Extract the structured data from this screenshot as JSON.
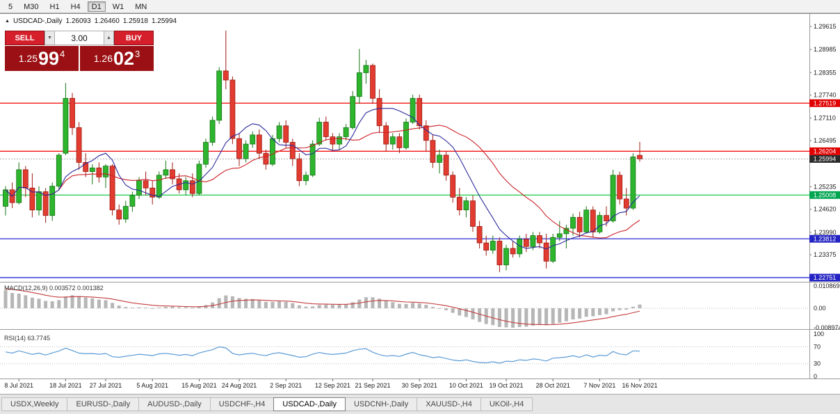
{
  "icons": {
    "collapse_triangle": "▲",
    "spin_up": "▲",
    "spin_down": "▼"
  },
  "toolbar": {
    "timeframes": [
      "5",
      "M30",
      "H1",
      "H4",
      "D1",
      "W1",
      "MN"
    ],
    "active": "D1"
  },
  "chart_header": {
    "symbol": "USDCAD-,Daily",
    "open": "1.26093",
    "high": "1.26460",
    "low": "1.25918",
    "close": "1.25994"
  },
  "trade_panel": {
    "sell_label": "SELL",
    "buy_label": "BUY",
    "volume": "3.00",
    "sell_price": {
      "prefix": "1.25",
      "big": "99",
      "sup": "4"
    },
    "buy_price": {
      "prefix": "1.26",
      "big": "02",
      "sup": "3"
    }
  },
  "tabs": {
    "items": [
      "USDX,Weekly",
      "EURUSD-,Daily",
      "AUDUSD-,Daily",
      "USDCHF-,H4",
      "USDCAD-,Daily",
      "USDCNH-,Daily",
      "XAUUSD-,H4",
      "UKOil-,H4"
    ],
    "active": "USDCAD-,Daily"
  },
  "chart_data": {
    "type": "candlestick",
    "symbol": "USDCAD",
    "timeframe": "Daily",
    "price_axis_labels": [
      "1.29615",
      "1.28985",
      "1.28355",
      "1.27740",
      "1.27110",
      "1.26495",
      "1.25235",
      "1.24620",
      "1.23990",
      "1.23375"
    ],
    "x_axis": {
      "labels": [
        "8 Jul 2021",
        "18 Jul 2021",
        "27 Jul 2021",
        "5 Aug 2021",
        "15 Aug 2021",
        "24 Aug 2021",
        "2 Sep 2021",
        "12 Sep 2021",
        "21 Sep 2021",
        "30 Sep 2021",
        "10 Oct 2021",
        "19 Oct 2021",
        "28 Oct 2021",
        "7 Nov 2021",
        "16 Nov 2021"
      ],
      "tick_indices": [
        2,
        9,
        15,
        22,
        29,
        35,
        42,
        49,
        55,
        62,
        69,
        75,
        82,
        89,
        95
      ]
    },
    "hlines": [
      {
        "price": 1.27519,
        "label": "1.27519",
        "line_color": "#f50000",
        "tag_color": "#e00000"
      },
      {
        "price": 1.26204,
        "label": "1.26204",
        "line_color": "#f50000",
        "tag_color": "#e00000"
      },
      {
        "price": 1.25008,
        "label": "1.25008",
        "line_color": "#00c432",
        "tag_color": "#00a550"
      },
      {
        "price": 1.23812,
        "label": "1.23812",
        "line_color": "#1414cd",
        "tag_color": "#2424c4"
      },
      {
        "price": 1.22751,
        "label": "1.22751",
        "line_color": "#1414cd",
        "tag_color": "#2424c4"
      }
    ],
    "current_price": {
      "value": 1.25994,
      "label": "1.25994",
      "tag_color": "#2b2b2b"
    },
    "overlays": [
      {
        "name": "ma-fast",
        "type": "sma",
        "period": 8
      },
      {
        "name": "ma-slow",
        "type": "sma",
        "period": 20
      }
    ],
    "indicators": {
      "macd": {
        "label": "MACD(12,26,9) 0.003572 0.001382",
        "values": [
          "0.003572",
          "0.001382"
        ],
        "axis_labels": [
          "0.010869",
          "0.00",
          "-0.008974"
        ],
        "max": 0.010869,
        "min": -0.008974
      },
      "rsi": {
        "label": "RSI(14) 63.7745",
        "value": "63.7745",
        "axis_labels": [
          "100",
          "70",
          "30",
          "0"
        ],
        "levels": [
          70,
          30
        ]
      }
    },
    "colors": {
      "bull": "#2db52d",
      "bull_border": "#157515",
      "bear": "#e23b30",
      "bear_border": "#9c1b12",
      "ma_fast": "#2b2b9c",
      "ma_slow": "#cc2026",
      "macd_histogram": "#b6b6b6",
      "macd_signal": "#c43b3b",
      "rsi_line": "#5b9bd5",
      "level_dotted": "#bdbdbd",
      "axis_text": "#1a1a1a"
    },
    "candles": [
      [
        1.247,
        1.2525,
        1.2445,
        1.2515
      ],
      [
        1.2515,
        1.2535,
        1.2465,
        1.248
      ],
      [
        1.248,
        1.259,
        1.2475,
        1.257
      ],
      [
        1.257,
        1.258,
        1.2495,
        1.252
      ],
      [
        1.252,
        1.256,
        1.244,
        1.246
      ],
      [
        1.246,
        1.2525,
        1.2445,
        1.251
      ],
      [
        1.251,
        1.252,
        1.2425,
        1.2445
      ],
      [
        1.2445,
        1.2535,
        1.243,
        1.2525
      ],
      [
        1.2525,
        1.2615,
        1.2515,
        1.261
      ],
      [
        1.2615,
        1.2807,
        1.261,
        1.2765
      ],
      [
        1.2765,
        1.278,
        1.2665,
        1.2685
      ],
      [
        1.2685,
        1.27,
        1.257,
        1.259
      ],
      [
        1.259,
        1.2615,
        1.255,
        1.2565
      ],
      [
        1.2565,
        1.2585,
        1.253,
        1.2575
      ],
      [
        1.2575,
        1.259,
        1.2535,
        1.255
      ],
      [
        1.255,
        1.2585,
        1.252,
        1.258
      ],
      [
        1.258,
        1.2585,
        1.2445,
        1.246
      ],
      [
        1.246,
        1.2475,
        1.242,
        1.2435
      ],
      [
        1.2435,
        1.2485,
        1.2425,
        1.247
      ],
      [
        1.247,
        1.251,
        1.2455,
        1.25
      ],
      [
        1.25,
        1.255,
        1.249,
        1.254
      ],
      [
        1.254,
        1.2565,
        1.25,
        1.252
      ],
      [
        1.252,
        1.254,
        1.2475,
        1.2495
      ],
      [
        1.2495,
        1.2565,
        1.249,
        1.2555
      ],
      [
        1.2555,
        1.2595,
        1.2545,
        1.257
      ],
      [
        1.257,
        1.259,
        1.253,
        1.2545
      ],
      [
        1.2545,
        1.256,
        1.2505,
        1.2515
      ],
      [
        1.2515,
        1.255,
        1.25,
        1.254
      ],
      [
        1.254,
        1.256,
        1.2495,
        1.2505
      ],
      [
        1.2505,
        1.2595,
        1.25,
        1.2585
      ],
      [
        1.2585,
        1.2655,
        1.2575,
        1.2645
      ],
      [
        1.2645,
        1.2715,
        1.2635,
        1.2705
      ],
      [
        1.2705,
        1.285,
        1.2695,
        1.284
      ],
      [
        1.284,
        1.295,
        1.279,
        1.2815
      ],
      [
        1.2815,
        1.2825,
        1.264,
        1.2655
      ],
      [
        1.2655,
        1.267,
        1.258,
        1.26
      ],
      [
        1.26,
        1.265,
        1.259,
        1.264
      ],
      [
        1.264,
        1.2675,
        1.263,
        1.2665
      ],
      [
        1.2665,
        1.268,
        1.26,
        1.2615
      ],
      [
        1.2615,
        1.2625,
        1.257,
        1.2585
      ],
      [
        1.2585,
        1.2665,
        1.258,
        1.2655
      ],
      [
        1.2655,
        1.27,
        1.2645,
        1.269
      ],
      [
        1.269,
        1.2705,
        1.263,
        1.2645
      ],
      [
        1.2645,
        1.2655,
        1.258,
        1.26
      ],
      [
        1.26,
        1.2615,
        1.2525,
        1.254
      ],
      [
        1.254,
        1.2565,
        1.2528,
        1.2555
      ],
      [
        1.2555,
        1.265,
        1.255,
        1.264
      ],
      [
        1.264,
        1.2712,
        1.2635,
        1.27
      ],
      [
        1.27,
        1.2715,
        1.265,
        1.266
      ],
      [
        1.266,
        1.267,
        1.262,
        1.264
      ],
      [
        1.264,
        1.267,
        1.2625,
        1.266
      ],
      [
        1.266,
        1.2695,
        1.265,
        1.2685
      ],
      [
        1.2685,
        1.2785,
        1.268,
        1.277
      ],
      [
        1.277,
        1.29,
        1.275,
        1.2835
      ],
      [
        1.2835,
        1.287,
        1.2805,
        1.2855
      ],
      [
        1.2855,
        1.286,
        1.275,
        1.2765
      ],
      [
        1.2765,
        1.279,
        1.267,
        1.269
      ],
      [
        1.269,
        1.27,
        1.262,
        1.264
      ],
      [
        1.264,
        1.267,
        1.2625,
        1.266
      ],
      [
        1.266,
        1.267,
        1.2615,
        1.263
      ],
      [
        1.263,
        1.271,
        1.2625,
        1.27
      ],
      [
        1.27,
        1.2775,
        1.2695,
        1.2765
      ],
      [
        1.2765,
        1.2775,
        1.268,
        1.269
      ],
      [
        1.269,
        1.2705,
        1.262,
        1.265
      ],
      [
        1.265,
        1.2665,
        1.2575,
        1.259
      ],
      [
        1.259,
        1.2625,
        1.256,
        1.261
      ],
      [
        1.261,
        1.262,
        1.254,
        1.2555
      ],
      [
        1.2555,
        1.2565,
        1.248,
        1.2495
      ],
      [
        1.2495,
        1.252,
        1.2445,
        1.246
      ],
      [
        1.246,
        1.2495,
        1.244,
        1.2485
      ],
      [
        1.2485,
        1.25,
        1.24,
        1.2415
      ],
      [
        1.2415,
        1.243,
        1.2355,
        1.237
      ],
      [
        1.237,
        1.239,
        1.2335,
        1.235
      ],
      [
        1.235,
        1.239,
        1.234,
        1.2375
      ],
      [
        1.2375,
        1.2385,
        1.229,
        1.231
      ],
      [
        1.231,
        1.2365,
        1.2295,
        1.2355
      ],
      [
        1.2355,
        1.2375,
        1.233,
        1.234
      ],
      [
        1.234,
        1.239,
        1.233,
        1.238
      ],
      [
        1.238,
        1.2395,
        1.2345,
        1.236
      ],
      [
        1.236,
        1.24,
        1.235,
        1.239
      ],
      [
        1.239,
        1.24,
        1.2355,
        1.237
      ],
      [
        1.237,
        1.2395,
        1.23,
        1.232
      ],
      [
        1.232,
        1.2395,
        1.2315,
        1.2385
      ],
      [
        1.2385,
        1.243,
        1.2375,
        1.2395
      ],
      [
        1.2395,
        1.242,
        1.2355,
        1.241
      ],
      [
        1.241,
        1.245,
        1.239,
        1.244
      ],
      [
        1.244,
        1.2455,
        1.2385,
        1.24
      ],
      [
        1.24,
        1.247,
        1.2395,
        1.246
      ],
      [
        1.246,
        1.247,
        1.2385,
        1.24
      ],
      [
        1.24,
        1.2455,
        1.2395,
        1.2445
      ],
      [
        1.2445,
        1.247,
        1.2415,
        1.243
      ],
      [
        1.243,
        1.257,
        1.2425,
        1.2555
      ],
      [
        1.2555,
        1.2565,
        1.2475,
        1.249
      ],
      [
        1.249,
        1.252,
        1.2445,
        1.2465
      ],
      [
        1.2465,
        1.2615,
        1.246,
        1.2605
      ],
      [
        1.26093,
        1.2646,
        1.25918,
        1.25994
      ]
    ]
  }
}
